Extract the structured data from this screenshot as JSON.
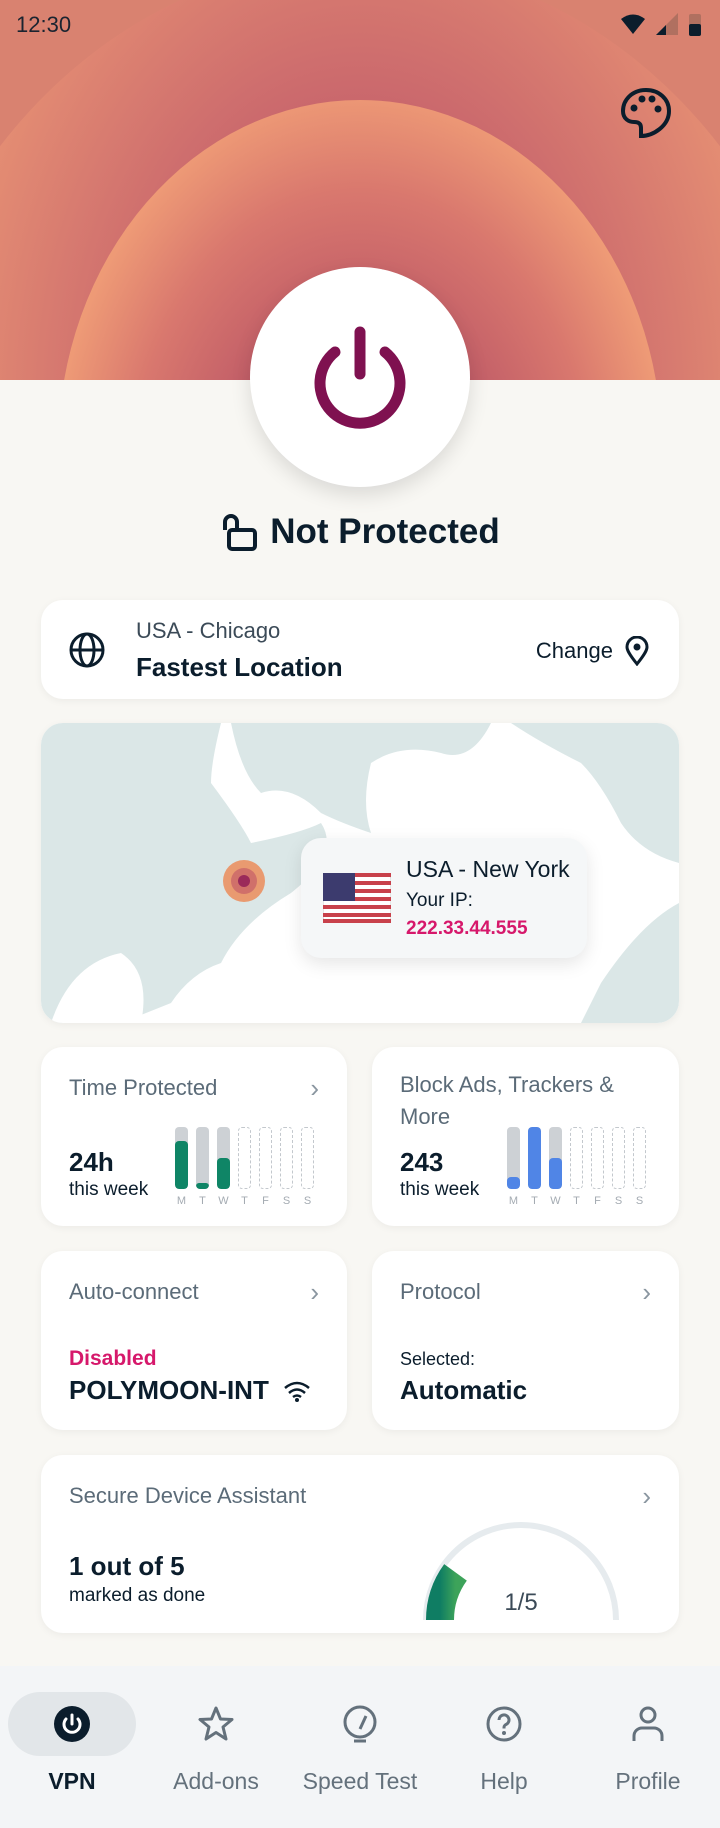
{
  "status_bar": {
    "time": "12:30"
  },
  "hero": {
    "status": "Not Protected",
    "accent": "#7f1150"
  },
  "location": {
    "region": "USA - Chicago",
    "name": "Fastest Location",
    "change_label": "Change"
  },
  "map": {
    "location": "USA - New York",
    "ip_label": "Your IP:",
    "ip": "222.33.44.555"
  },
  "time_protected": {
    "title": "Time Protected",
    "value": "24h",
    "sub": "this week",
    "days": [
      "M",
      "T",
      "W",
      "T",
      "F",
      "S",
      "S"
    ],
    "levels": [
      0.77,
      0.1,
      0.5,
      null,
      null,
      null,
      null
    ],
    "color": "#0f8566"
  },
  "block_ads": {
    "title": "Block Ads, Trackers & More",
    "value": "243",
    "sub": "this week",
    "days": [
      "M",
      "T",
      "W",
      "T",
      "F",
      "S",
      "S"
    ],
    "levels": [
      0.2,
      1.0,
      0.5,
      null,
      null,
      null,
      null
    ],
    "color": "#5085e6"
  },
  "autoconnect": {
    "title": "Auto-connect",
    "state": "Disabled",
    "network": "POLYMOON-INT"
  },
  "protocol": {
    "title": "Protocol",
    "label": "Selected:",
    "value": "Automatic"
  },
  "assistant": {
    "title": "Secure Device Assistant",
    "value": "1 out of 5",
    "sub": "marked as done",
    "gauge": "1/5",
    "progress": 0.2
  },
  "nav": [
    {
      "label": "VPN",
      "icon": "power-icon",
      "active": true
    },
    {
      "label": "Add-ons",
      "icon": "star-icon"
    },
    {
      "label": "Speed Test",
      "icon": "speedometer-icon"
    },
    {
      "label": "Help",
      "icon": "help-icon"
    },
    {
      "label": "Profile",
      "icon": "person-icon"
    }
  ]
}
